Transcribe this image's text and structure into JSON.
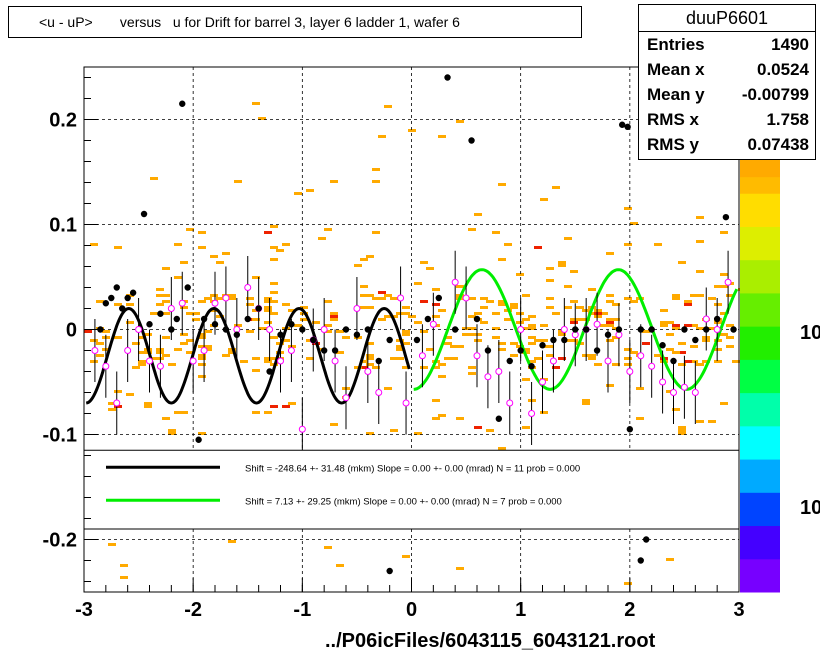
{
  "title": "<u - uP>       versus   u for Drift for barrel 3, layer 6 ladder 1, wafer 6",
  "stats": {
    "name": "duuP6601",
    "rows": [
      {
        "key": "Entries",
        "value": "1490"
      },
      {
        "key": "Mean x",
        "value": "0.0524"
      },
      {
        "key": "Mean y",
        "value": "-0.00799"
      },
      {
        "key": "RMS x",
        "value": "1.758"
      },
      {
        "key": "RMS y",
        "value": "0.07438"
      }
    ]
  },
  "legend": [
    {
      "color": "#000000",
      "text": "Shift =  -248.64 +- 31.48 (mkm) Slope =     0.00 +- 0.00 (mrad)  N = 11 prob = 0.000"
    },
    {
      "color": "#00ee00",
      "text": "Shift =     7.13 +- 29.25 (mkm) Slope =     0.00 +- 0.00 (mrad)  N = 7 prob = 0.000"
    }
  ],
  "footer": "../P06icFiles/6043115_6043121.root",
  "colors": {
    "hist_orange": "#ffaa00",
    "hist_red": "#ee2200",
    "profile_open": "#ff00ff",
    "black_fit": "#000000",
    "green_fit": "#00ee00"
  },
  "chart_data": {
    "type": "scatter",
    "xlim": [
      -3,
      3
    ],
    "ylim": [
      -0.25,
      0.25
    ],
    "x_ticks": [
      "-3",
      "-2",
      "-1",
      "0",
      "1",
      "2",
      "3"
    ],
    "y_ticks": [
      "-0.2",
      "-0.1",
      "0",
      "0.1",
      "0.2"
    ],
    "grid": true,
    "colorbar_labels": [
      "10",
      "10"
    ],
    "black_points": [
      [
        -2.85,
        0.0
      ],
      [
        -2.8,
        0.025
      ],
      [
        -2.75,
        0.03
      ],
      [
        -2.7,
        0.04
      ],
      [
        -2.65,
        0.02
      ],
      [
        -2.6,
        0.03
      ],
      [
        -2.55,
        0.035
      ],
      [
        -2.45,
        0.11
      ],
      [
        -2.4,
        0.005
      ],
      [
        -2.3,
        0.015
      ],
      [
        -2.2,
        0.0
      ],
      [
        -2.15,
        0.01
      ],
      [
        -2.1,
        0.215
      ],
      [
        -2.05,
        0.04
      ],
      [
        -1.95,
        -0.105
      ],
      [
        -1.9,
        0.01
      ],
      [
        -1.8,
        0.005
      ],
      [
        -1.7,
        0.0
      ],
      [
        -1.6,
        -0.005
      ],
      [
        -1.5,
        0.01
      ],
      [
        -1.4,
        0.02
      ],
      [
        -1.3,
        -0.04
      ],
      [
        -1.2,
        -0.005
      ],
      [
        -1.1,
        0.005
      ],
      [
        -1.0,
        0.0
      ],
      [
        -0.9,
        -0.01
      ],
      [
        -0.8,
        -0.02
      ],
      [
        -0.7,
        -0.02
      ],
      [
        -0.6,
        0.0
      ],
      [
        -0.5,
        -0.005
      ],
      [
        -0.4,
        0.0
      ],
      [
        -0.3,
        -0.03
      ],
      [
        -0.2,
        -0.01
      ],
      [
        -0.2,
        -0.23
      ],
      [
        0.05,
        -0.01
      ],
      [
        0.15,
        0.01
      ],
      [
        0.25,
        0.03
      ],
      [
        0.33,
        0.24
      ],
      [
        0.4,
        0.0
      ],
      [
        0.55,
        0.18
      ],
      [
        0.6,
        0.01
      ],
      [
        0.7,
        -0.02
      ],
      [
        0.8,
        -0.085
      ],
      [
        0.9,
        -0.03
      ],
      [
        1.0,
        -0.02
      ],
      [
        1.1,
        -0.035
      ],
      [
        1.2,
        -0.015
      ],
      [
        1.3,
        -0.01
      ],
      [
        1.4,
        -0.01
      ],
      [
        1.5,
        0.0
      ],
      [
        1.6,
        0.0
      ],
      [
        1.7,
        -0.02
      ],
      [
        1.8,
        -0.005
      ],
      [
        1.9,
        0.0
      ],
      [
        1.93,
        0.195
      ],
      [
        1.98,
        0.193
      ],
      [
        2.0,
        -0.095
      ],
      [
        2.1,
        0.0
      ],
      [
        2.1,
        -0.22
      ],
      [
        2.15,
        -0.2
      ],
      [
        2.2,
        0.0
      ],
      [
        2.3,
        -0.015
      ],
      [
        2.4,
        -0.03
      ],
      [
        2.5,
        0.0
      ],
      [
        2.6,
        -0.01
      ],
      [
        2.7,
        0.0
      ],
      [
        2.8,
        0.01
      ],
      [
        2.88,
        0.107
      ],
      [
        2.95,
        0.0
      ]
    ],
    "open_points": [
      [
        -2.9,
        -0.02
      ],
      [
        -2.8,
        -0.035
      ],
      [
        -2.7,
        -0.07
      ],
      [
        -2.6,
        -0.02
      ],
      [
        -2.5,
        0.0
      ],
      [
        -2.4,
        -0.03
      ],
      [
        -2.3,
        -0.035
      ],
      [
        -2.2,
        0.02
      ],
      [
        -2.1,
        0.025
      ],
      [
        -2.0,
        -0.03
      ],
      [
        -1.9,
        -0.02
      ],
      [
        -1.8,
        0.025
      ],
      [
        -1.7,
        0.03
      ],
      [
        -1.6,
        0.0
      ],
      [
        -1.5,
        0.04
      ],
      [
        -1.4,
        0.02
      ],
      [
        -1.3,
        0.0
      ],
      [
        -1.2,
        -0.03
      ],
      [
        -1.1,
        -0.02
      ],
      [
        -1.0,
        -0.095
      ],
      [
        -0.9,
        -0.01
      ],
      [
        -0.8,
        0.0
      ],
      [
        -0.7,
        -0.03
      ],
      [
        -0.6,
        -0.065
      ],
      [
        -0.5,
        0.02
      ],
      [
        -0.4,
        -0.04
      ],
      [
        -0.3,
        -0.06
      ],
      [
        -0.1,
        0.03
      ],
      [
        -0.05,
        -0.07
      ],
      [
        0.1,
        -0.025
      ],
      [
        0.2,
        0.005
      ],
      [
        0.4,
        0.045
      ],
      [
        0.5,
        0.03
      ],
      [
        0.6,
        -0.025
      ],
      [
        0.7,
        -0.045
      ],
      [
        0.8,
        -0.04
      ],
      [
        0.9,
        -0.07
      ],
      [
        1.0,
        0.0
      ],
      [
        1.1,
        -0.08
      ],
      [
        1.2,
        -0.05
      ],
      [
        1.3,
        -0.03
      ],
      [
        1.4,
        0.0
      ],
      [
        1.5,
        -0.005
      ],
      [
        1.6,
        0.0
      ],
      [
        1.7,
        0.005
      ],
      [
        1.8,
        -0.03
      ],
      [
        1.9,
        -0.005
      ],
      [
        2.0,
        -0.04
      ],
      [
        2.1,
        -0.025
      ],
      [
        2.2,
        -0.035
      ],
      [
        2.3,
        -0.05
      ],
      [
        2.4,
        -0.06
      ],
      [
        2.5,
        -0.055
      ],
      [
        2.6,
        -0.06
      ],
      [
        2.7,
        0.01
      ],
      [
        2.8,
        0.0
      ],
      [
        2.9,
        0.045
      ]
    ],
    "black_fit": {
      "x_range": [
        -2.98,
        -0.02
      ],
      "amplitude": 0.045,
      "period": 0.78,
      "offset": -0.025
    },
    "green_fit": {
      "x_range": [
        0.02,
        2.98
      ],
      "amplitude": 0.057,
      "period": 1.25,
      "offset": 0.0
    },
    "legend_y_range": [
      -0.19,
      -0.115
    ]
  }
}
